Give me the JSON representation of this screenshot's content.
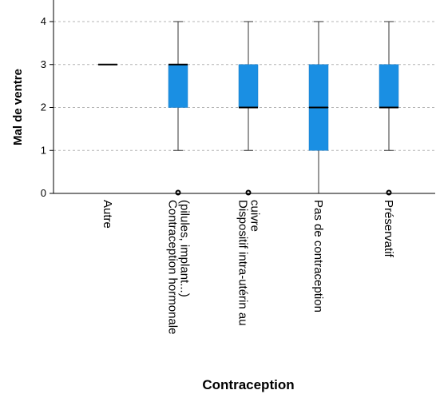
{
  "chart_data": {
    "type": "boxplot",
    "xlabel": "Contraception",
    "ylabel": "Mal de ventre",
    "ylim": [
      0,
      4
    ],
    "yticks": [
      0,
      1,
      2,
      3,
      4
    ],
    "grid": "horizontal-dashed",
    "box_color": "#1a8fe3",
    "categories": [
      {
        "label_lines": [
          "Autre"
        ],
        "min": 3,
        "q1": 3,
        "median": 3,
        "q3": 3,
        "max": 3,
        "outliers": []
      },
      {
        "label_lines": [
          "Contraception hormonale",
          "(pilules, implant...)"
        ],
        "min": 1,
        "q1": 2,
        "median": 3,
        "q3": 3,
        "max": 4,
        "outliers": [
          0
        ]
      },
      {
        "label_lines": [
          "Dispositif intra-utérin au",
          "cuivre"
        ],
        "min": 1,
        "q1": 2,
        "median": 2,
        "q3": 3,
        "max": 4,
        "outliers": [
          0
        ]
      },
      {
        "label_lines": [
          "Pas de contraception"
        ],
        "min": 0,
        "q1": 1,
        "median": 2,
        "q3": 3,
        "max": 4,
        "outliers": []
      },
      {
        "label_lines": [
          "Préservatif"
        ],
        "min": 1,
        "q1": 2,
        "median": 2,
        "q3": 3,
        "max": 4,
        "outliers": [
          0
        ]
      }
    ]
  }
}
